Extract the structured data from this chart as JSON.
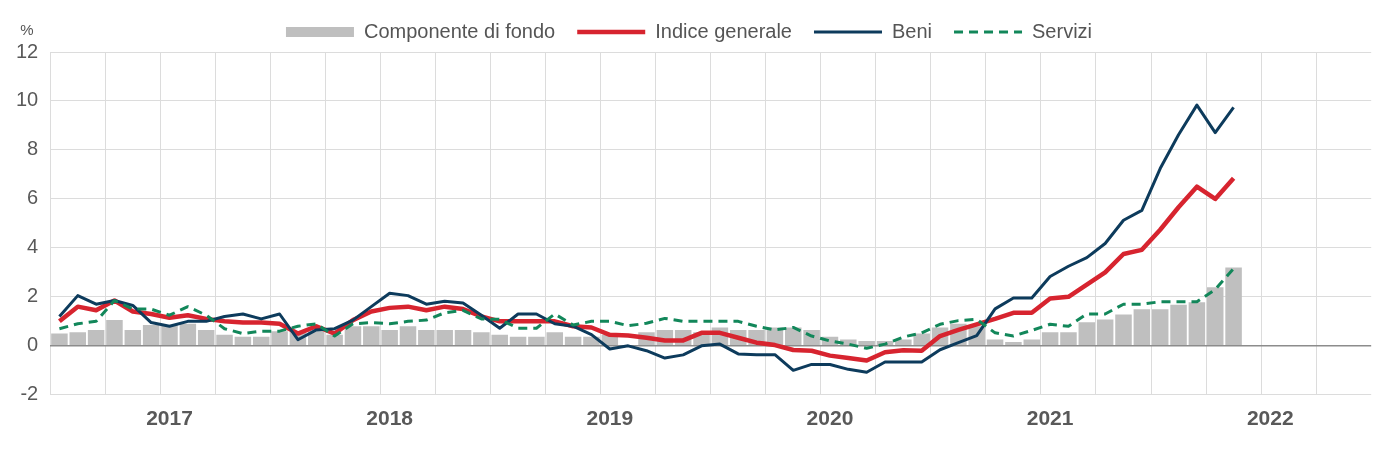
{
  "chart_data": {
    "type": "line",
    "ylabel": "%",
    "categories": [
      null,
      null,
      null,
      null,
      null,
      null,
      "2017",
      null,
      null,
      null,
      null,
      null,
      null,
      null,
      null,
      null,
      null,
      null,
      "2018",
      null,
      null,
      null,
      null,
      null,
      null,
      null,
      null,
      null,
      null,
      null,
      "2019",
      null,
      null,
      null,
      null,
      null,
      null,
      null,
      null,
      null,
      null,
      null,
      "2020",
      null,
      null,
      null,
      null,
      null,
      null,
      null,
      null,
      null,
      null,
      null,
      "2021",
      null,
      null,
      null,
      null,
      null,
      null,
      null,
      null,
      null,
      null,
      null,
      "2022",
      null,
      null,
      null,
      null,
      null
    ],
    "ylim": [
      -2,
      12
    ],
    "yticks": [
      -2,
      0,
      2,
      4,
      6,
      8,
      10,
      12
    ],
    "grid": true,
    "legend": "top",
    "marker": "none",
    "series": [
      {
        "name": "Componente di fondo",
        "type": "bar",
        "color": "#bfbfbf",
        "values": [
          0.5,
          0.55,
          0.65,
          1.05,
          0.65,
          0.85,
          0.85,
          0.9,
          0.65,
          0.45,
          0.37,
          0.37,
          0.6,
          0.6,
          0.6,
          0.45,
          0.8,
          0.8,
          0.65,
          0.8,
          0.65,
          0.65,
          0.65,
          0.55,
          0.45,
          0.37,
          0.37,
          0.55,
          0.37,
          0.37,
          0.45,
          null,
          0.55,
          0.65,
          0.65,
          0.55,
          0.75,
          0.65,
          0.65,
          0.75,
          0.75,
          0.65,
          0.37,
          0.26,
          0.2,
          0.2,
          0.26,
          0.5,
          0.75,
          0.9,
          0.8,
          0.26,
          0.16,
          0.26,
          0.55,
          0.55,
          0.96,
          1.08,
          1.28,
          1.49,
          1.49,
          1.68,
          1.78,
          2.39,
          3.2,
          null,
          null,
          null,
          null,
          null,
          null,
          null
        ]
      },
      {
        "name": "Indice generale",
        "color": "#d7242f",
        "line_style": "solid",
        "values": [
          1.0,
          1.6,
          1.45,
          1.85,
          1.4,
          1.3,
          1.15,
          1.25,
          1.1,
          1.0,
          0.95,
          0.95,
          0.9,
          0.5,
          0.8,
          0.5,
          1.05,
          1.4,
          1.55,
          1.6,
          1.45,
          1.6,
          1.5,
          1.2,
          1.0,
          1.0,
          1.0,
          1.0,
          0.8,
          0.75,
          0.45,
          0.42,
          0.33,
          0.22,
          0.22,
          0.53,
          0.53,
          0.33,
          0.13,
          0.03,
          -0.17,
          -0.2,
          -0.4,
          -0.5,
          -0.6,
          -0.26,
          -0.18,
          -0.2,
          0.4,
          0.65,
          0.88,
          1.1,
          1.35,
          1.35,
          1.93,
          2.0,
          2.5,
          3.0,
          3.75,
          3.92,
          4.74,
          5.66,
          6.5,
          6.0,
          6.84,
          null,
          null,
          null,
          null,
          null,
          null,
          null
        ]
      },
      {
        "name": "Beni",
        "color": "#0d3b5c",
        "line_style": "solid",
        "values": [
          1.2,
          2.05,
          1.7,
          1.85,
          1.65,
          0.95,
          0.8,
          1.0,
          1.0,
          1.2,
          1.3,
          1.1,
          1.3,
          0.25,
          0.65,
          0.7,
          1.05,
          1.6,
          2.15,
          2.05,
          1.7,
          1.82,
          1.75,
          1.25,
          0.72,
          1.3,
          1.3,
          0.9,
          0.8,
          0.46,
          -0.13,
          0.0,
          -0.2,
          -0.5,
          -0.37,
          0.0,
          0.07,
          -0.33,
          -0.36,
          -0.36,
          -1.0,
          -0.76,
          -0.76,
          -0.96,
          -1.08,
          -0.66,
          -0.66,
          -0.66,
          -0.16,
          0.13,
          0.42,
          1.51,
          1.95,
          1.95,
          2.83,
          3.25,
          3.6,
          4.18,
          5.13,
          5.53,
          7.24,
          8.62,
          9.83,
          8.71,
          9.74,
          null,
          null,
          null,
          null,
          null,
          null,
          null
        ]
      },
      {
        "name": "Servizi",
        "color": "#12875a",
        "line_style": "dashed",
        "values": [
          0.7,
          0.9,
          1.0,
          1.85,
          1.5,
          1.5,
          1.25,
          1.6,
          1.25,
          0.7,
          0.5,
          0.6,
          0.6,
          0.8,
          0.9,
          0.4,
          0.9,
          0.95,
          0.9,
          1.0,
          1.05,
          1.35,
          1.45,
          1.1,
          1.08,
          0.72,
          0.72,
          1.3,
          0.85,
          1.0,
          1.0,
          0.82,
          0.92,
          1.12,
          1.0,
          1.0,
          1.0,
          1.0,
          0.8,
          0.65,
          0.75,
          0.4,
          0.2,
          0.07,
          -0.1,
          0.07,
          0.36,
          0.53,
          0.88,
          1.03,
          1.08,
          0.53,
          0.4,
          0.63,
          0.88,
          0.8,
          1.3,
          1.3,
          1.7,
          1.7,
          1.8,
          1.8,
          1.8,
          2.3,
          3.15,
          null,
          null,
          null,
          null,
          null,
          null,
          null
        ]
      }
    ]
  }
}
